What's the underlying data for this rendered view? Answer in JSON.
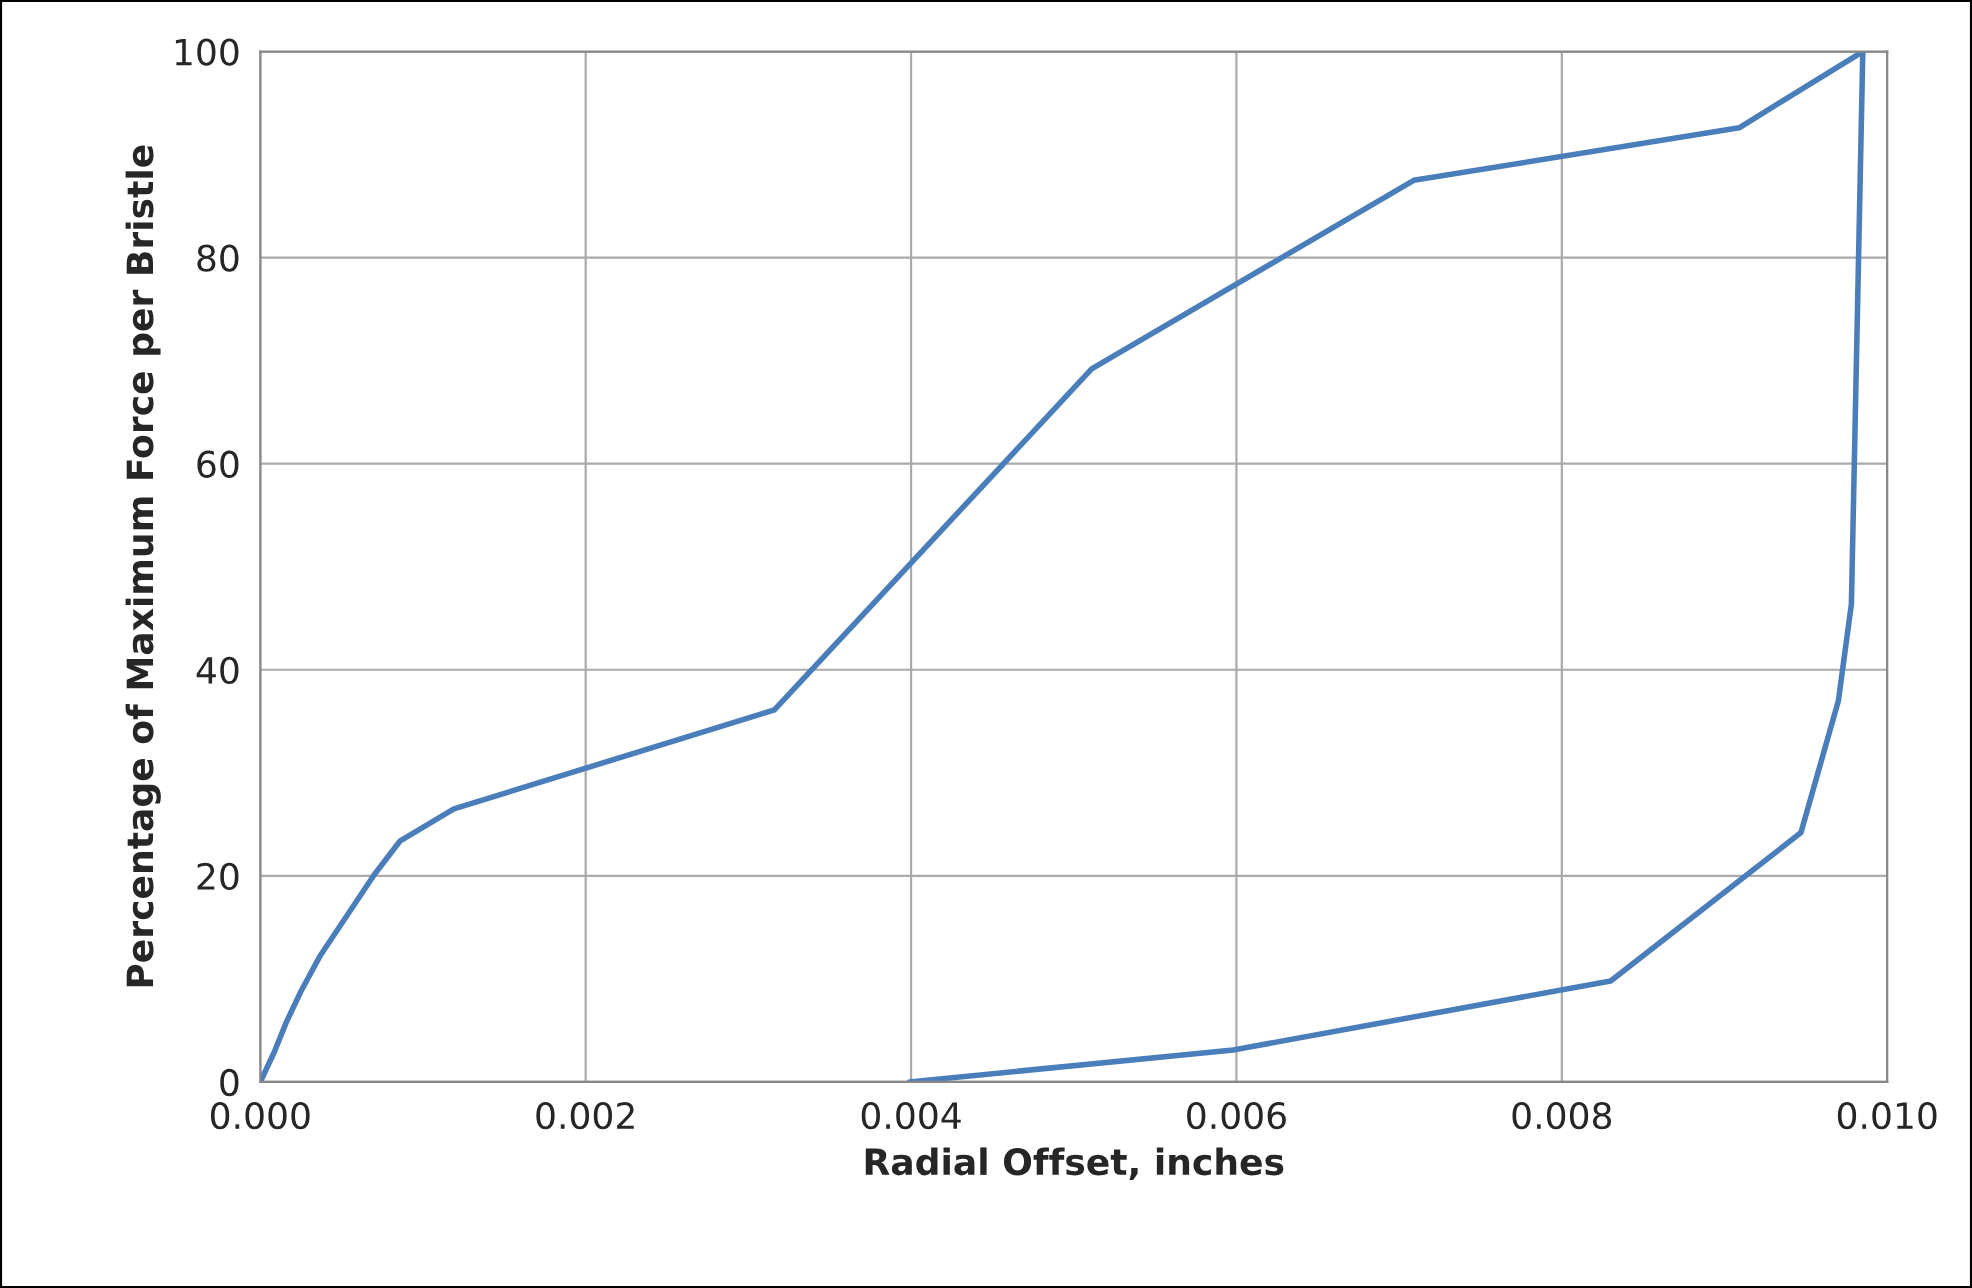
{
  "chart_data": {
    "type": "line",
    "xlabel": "Radial Offset, inches",
    "ylabel": "Percentage of Maximum Force per Bristle",
    "series": [
      {
        "color": "#4a7ebb",
        "x": [
          0.0,
          8.6e-05,
          0.00016,
          0.00025,
          0.00037,
          0.0007,
          0.00086,
          0.00119,
          0.00316,
          0.00511,
          0.00709,
          0.00909,
          0.00985
        ],
        "values": [
          0,
          2.9,
          5.8,
          8.8,
          12.3,
          20.1,
          23.4,
          26.5,
          36.1,
          69.2,
          87.5,
          92.6,
          100
        ]
      },
      {
        "color": "#4a7ebb",
        "x": [
          0.00399,
          0.00598,
          0.0083,
          0.00947,
          0.0097,
          0.00978,
          0.00985
        ],
        "values": [
          0,
          3.1,
          9.8,
          24.2,
          37,
          46.4,
          100
        ]
      }
    ],
    "xlim": [
      0.0,
      0.01
    ],
    "xticks": [
      {
        "value": 0,
        "label": "0.000"
      },
      {
        "value": 0.002,
        "label": "0.002"
      },
      {
        "value": 0.004,
        "label": "0.004"
      },
      {
        "value": 0.006,
        "label": "0.006"
      },
      {
        "value": 0.008,
        "label": "0.008"
      },
      {
        "value": 0.01,
        "label": "0.010"
      }
    ],
    "ylim": [
      0,
      100
    ],
    "yticks": [
      0,
      20,
      40,
      60,
      80,
      100
    ],
    "grid": true,
    "marker": "none",
    "line_style": "solid",
    "legend": false
  }
}
